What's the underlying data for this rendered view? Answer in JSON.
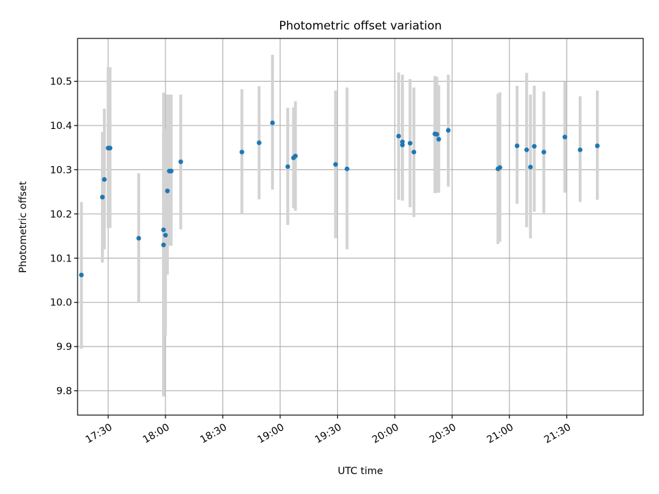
{
  "chart_data": {
    "type": "scatter",
    "title": "Photometric offset variation",
    "xlabel": "UTC time",
    "ylabel": "Photometric offset",
    "x_axis_kind": "time",
    "xlim": [
      "17:14",
      "22:10"
    ],
    "ylim": [
      9.745,
      10.597
    ],
    "x_ticks": [
      "17:30",
      "18:00",
      "18:30",
      "19:00",
      "19:30",
      "20:00",
      "20:30",
      "21:00",
      "21:30"
    ],
    "y_ticks": [
      9.8,
      9.9,
      10.0,
      10.1,
      10.2,
      10.3,
      10.4,
      10.5
    ],
    "y_tick_labels": [
      "9.8",
      "9.9",
      "10.0",
      "10.1",
      "10.2",
      "10.3",
      "10.4",
      "10.5"
    ],
    "grid": true,
    "legend": "none",
    "marker_color": "#1f77b4",
    "errorbar_color": "#d3d3d3",
    "series": [
      {
        "x": [
          "17:16",
          "17:27",
          "17:28",
          "17:30",
          "17:31",
          "17:46",
          "17:59",
          "17:59",
          "18:00",
          "18:01",
          "18:02",
          "18:03",
          "18:08",
          "18:40",
          "18:49",
          "18:56",
          "19:04",
          "19:07",
          "19:08",
          "19:29",
          "19:35",
          "20:02",
          "20:04",
          "20:04",
          "20:08",
          "20:10",
          "20:21",
          "20:22",
          "20:23",
          "20:28",
          "20:54",
          "20:55",
          "21:04",
          "21:09",
          "21:11",
          "21:13",
          "21:18",
          "21:29",
          "21:37",
          "21:46"
        ],
        "y": [
          10.062,
          10.238,
          10.278,
          10.349,
          10.349,
          10.145,
          10.13,
          10.164,
          10.152,
          10.252,
          10.297,
          10.297,
          10.318,
          10.34,
          10.361,
          10.406,
          10.307,
          10.327,
          10.331,
          10.312,
          10.302,
          10.376,
          10.363,
          10.356,
          10.36,
          10.34,
          10.381,
          10.38,
          10.369,
          10.389,
          10.302,
          10.305,
          10.354,
          10.345,
          10.306,
          10.353,
          10.34,
          10.374,
          10.345,
          10.354
        ],
        "y_err_low": [
          9.895,
          10.09,
          10.12,
          10.168,
          10.168,
          10.0,
          9.787,
          9.79,
          9.925,
          10.063,
          10.128,
          10.128,
          10.165,
          10.2,
          10.233,
          10.255,
          10.175,
          10.213,
          10.207,
          10.145,
          10.12,
          10.232,
          10.238,
          10.23,
          10.215,
          10.193,
          10.247,
          10.248,
          10.248,
          10.262,
          10.132,
          10.137,
          10.223,
          10.17,
          10.145,
          10.205,
          10.202,
          10.248,
          10.227,
          10.232
        ],
        "y_err_high": [
          10.227,
          10.385,
          10.438,
          10.532,
          10.532,
          10.292,
          10.474,
          10.38,
          10.392,
          10.47,
          10.47,
          10.47,
          10.47,
          10.482,
          10.489,
          10.56,
          10.44,
          10.441,
          10.455,
          10.479,
          10.486,
          10.52,
          10.515,
          10.493,
          10.505,
          10.486,
          10.512,
          10.51,
          10.491,
          10.515,
          10.472,
          10.475,
          10.49,
          10.519,
          10.47,
          10.49,
          10.477,
          10.499,
          10.466,
          10.479
        ]
      }
    ]
  }
}
